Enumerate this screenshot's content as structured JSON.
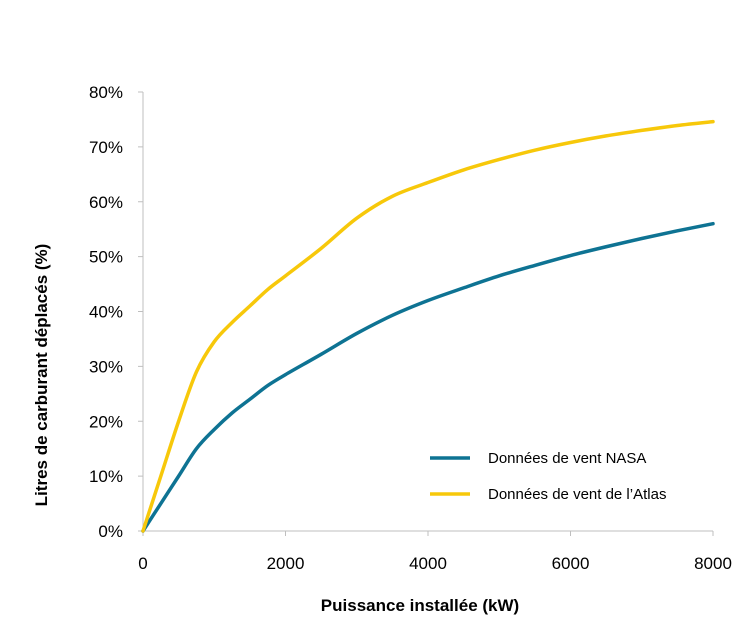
{
  "chart_data": {
    "type": "line",
    "title": "",
    "xlabel": "Puissance installée (kW)",
    "ylabel": "Litres de carburant déplacés (%)",
    "xlim": [
      0,
      8000
    ],
    "ylim": [
      0,
      0.8
    ],
    "xticks": [
      0,
      2000,
      4000,
      6000,
      8000
    ],
    "xtick_labels": [
      "0",
      "2000",
      "4000",
      "6000",
      "8000"
    ],
    "yticks": [
      0,
      0.1,
      0.2,
      0.3,
      0.4,
      0.5,
      0.6,
      0.7,
      0.8
    ],
    "ytick_labels": [
      "0%",
      "10%",
      "20%",
      "30%",
      "40%",
      "50%",
      "60%",
      "70%",
      "80%"
    ],
    "grid": false,
    "legend_position": "bottom-right",
    "series": [
      {
        "name": "Données de vent NASA",
        "color": "#0e7393",
        "x": [
          0,
          250,
          500,
          750,
          1000,
          1250,
          1500,
          1750,
          2000,
          2500,
          3000,
          3500,
          4000,
          4500,
          5000,
          5500,
          6000,
          6500,
          7000,
          7500,
          8000
        ],
        "y": [
          0,
          0.05,
          0.1,
          0.15,
          0.185,
          0.215,
          0.24,
          0.265,
          0.285,
          0.322,
          0.36,
          0.393,
          0.42,
          0.443,
          0.465,
          0.484,
          0.502,
          0.518,
          0.533,
          0.547,
          0.56
        ]
      },
      {
        "name": "Données de vent de l’Atlas",
        "color": "#f7c80a",
        "x": [
          0,
          250,
          500,
          750,
          1000,
          1250,
          1500,
          1750,
          2000,
          2500,
          3000,
          3500,
          4000,
          4500,
          5000,
          5500,
          6000,
          6500,
          7000,
          7500,
          8000
        ],
        "y": [
          0,
          0.1,
          0.2,
          0.29,
          0.345,
          0.38,
          0.41,
          0.44,
          0.465,
          0.515,
          0.57,
          0.61,
          0.635,
          0.658,
          0.677,
          0.694,
          0.708,
          0.72,
          0.73,
          0.739,
          0.746
        ]
      }
    ]
  }
}
